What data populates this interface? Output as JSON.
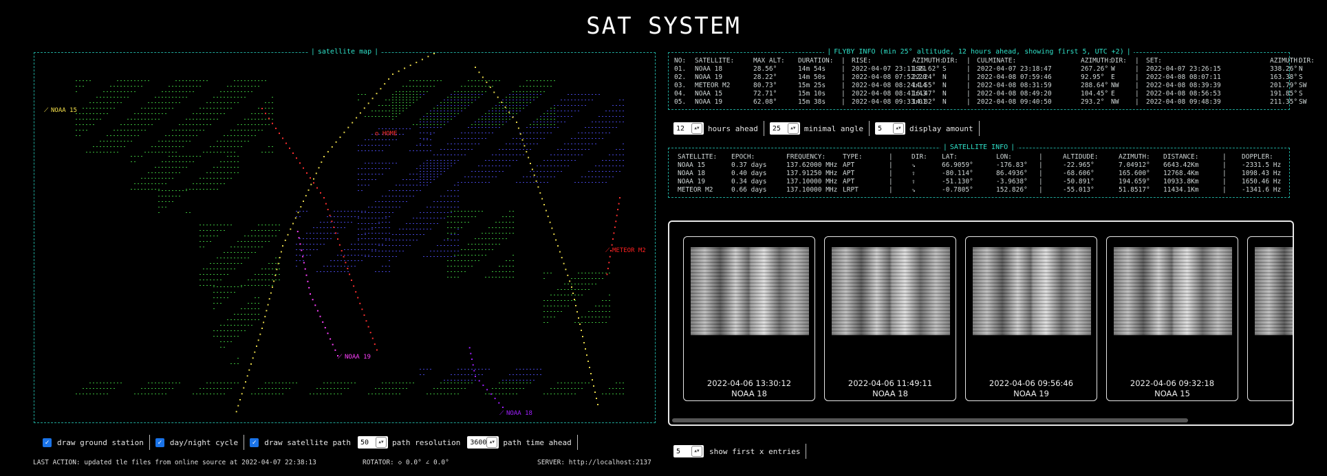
{
  "app_title": "SAT SYSTEM",
  "map": {
    "title": "satellite map",
    "home_label": "o HOME",
    "satellites": [
      {
        "label": "NOAA 15",
        "color": "#f4e04a"
      },
      {
        "label": "METEOR M2",
        "color": "#ff2020"
      },
      {
        "label": "NOAA 19",
        "color": "#ff40ff"
      },
      {
        "label": "NOAA 18",
        "color": "#a020ff"
      }
    ]
  },
  "flyby": {
    "title": "FLYBY INFO (min 25° altitude, 12 hours ahead, showing first 5, UTC +2)",
    "headers": [
      "NO:",
      "SATELLITE:",
      "MAX ALT:",
      "DURATION:",
      "|",
      "RISE:",
      "AZIMUTH:",
      "DIR:",
      "|",
      "CULMINATE:",
      "AZIMUTH:",
      "DIR:",
      "|",
      "SET:",
      "AZIMUTH:",
      "DIR:"
    ],
    "rows": [
      [
        "01.",
        "NOAA 18",
        "28.56°",
        "14m 54s",
        "|",
        "2022-04-07 23:11:21",
        "196.62°",
        "S",
        "|",
        "2022-04-07 23:18:47",
        "267.26°",
        "W",
        "|",
        "2022-04-07 23:26:15",
        "338.26°",
        "N"
      ],
      [
        "02.",
        "NOAA 19",
        "28.22°",
        "14m 50s",
        "|",
        "2022-04-08 07:52:20",
        "22.24°",
        "N",
        "|",
        "2022-04-08 07:59:46",
        "92.95°",
        "E",
        "|",
        "2022-04-08 08:07:11",
        "163.38°",
        "S"
      ],
      [
        "03.",
        "METEOR M2",
        "80.73°",
        "15m 25s",
        "|",
        "2022-04-08 08:24:14",
        "14.55°",
        "N",
        "|",
        "2022-04-08 08:31:59",
        "288.64°",
        "NW",
        "|",
        "2022-04-08 08:39:39",
        "201.79°",
        "SW"
      ],
      [
        "04.",
        "NOAA 15",
        "72.71°",
        "15m 10s",
        "|",
        "2022-04-08 08:41:43",
        "16.47°",
        "N",
        "|",
        "2022-04-08 08:49:20",
        "104.45°",
        "E",
        "|",
        "2022-04-08 08:56:53",
        "191.85°",
        "S"
      ],
      [
        "05.",
        "NOAA 19",
        "62.08°",
        "15m 38s",
        "|",
        "2022-04-08 09:33:01",
        "14.82°",
        "N",
        "|",
        "2022-04-08 09:40:50",
        "293.2°",
        "NW",
        "|",
        "2022-04-08 09:48:39",
        "211.35°",
        "SW"
      ]
    ]
  },
  "flyby_controls": {
    "hours_value": "12",
    "hours_label": "hours ahead",
    "angle_value": "25",
    "angle_label": "minimal angle",
    "amount_value": "5",
    "amount_label": "display amount"
  },
  "satinfo": {
    "title": "SATELLITE INFO",
    "headers": [
      "SATELLITE:",
      "EPOCH:",
      "FREQUENCY:",
      "TYPE:",
      "|",
      "DIR:",
      "LAT:",
      "LON:",
      "|",
      "ALTIDUDE:",
      "AZIMUTH:",
      "DISTANCE:",
      "|",
      "DOPPLER:"
    ],
    "rows": [
      [
        "NOAA 15",
        "0.37 days",
        "137.62000 MHz",
        "APT",
        "|",
        "⇘",
        "66.9059°",
        "-176.83°",
        "|",
        "-22.965°",
        "7.04912°",
        "6643.42Km",
        "|",
        "-2331.5 Hz"
      ],
      [
        "NOAA 18",
        "0.40 days",
        "137.91250 MHz",
        "APT",
        "|",
        "⇧",
        "-80.114°",
        "86.4936°",
        "|",
        "-68.606°",
        "165.600°",
        "12768.4Km",
        "|",
        "1098.43 Hz"
      ],
      [
        "NOAA 19",
        "0.34 days",
        "137.10000 MHz",
        "APT",
        "|",
        "⇧",
        "-51.130°",
        "-3.9638°",
        "|",
        "-50.891°",
        "194.659°",
        "10933.8Km",
        "|",
        "1650.46 Hz"
      ],
      [
        "METEOR M2",
        "0.66 days",
        "137.10000 MHz",
        "LRPT",
        "|",
        "⇘",
        "-0.7805°",
        "152.826°",
        "|",
        "-55.013°",
        "51.8517°",
        "11434.1Km",
        "|",
        "-1341.6 Hz"
      ]
    ]
  },
  "gallery": {
    "cards": [
      {
        "date": "2022-04-06 13:30:12",
        "sat": "NOAA 18"
      },
      {
        "date": "2022-04-06 11:49:11",
        "sat": "NOAA 18"
      },
      {
        "date": "2022-04-06 09:56:46",
        "sat": "NOAA 19"
      },
      {
        "date": "2022-04-06 09:32:18",
        "sat": "NOAA 15"
      },
      {
        "date": "2022-0",
        "sat": ""
      }
    ],
    "show_value": "5",
    "show_label": "show first x entries"
  },
  "map_controls": {
    "ground_station_label": "draw ground station",
    "daynight_label": "day/night cycle",
    "path_label": "draw satellite path",
    "resolution_value": "50",
    "resolution_label": "path resolution",
    "time_value": "3600",
    "time_label": "path time ahead"
  },
  "status": {
    "last_action": "LAST ACTION: updated tle files from online source at 2022-04-07 22:38:13",
    "rotator": "ROTATOR: ◇ 0.0° ∠ 0.0°",
    "server": "SERVER: http://localhost:2137"
  },
  "colors": {
    "accent": "#1fa89a",
    "title_accent": "#2fe0c8",
    "checkbox": "#1a73e8"
  }
}
